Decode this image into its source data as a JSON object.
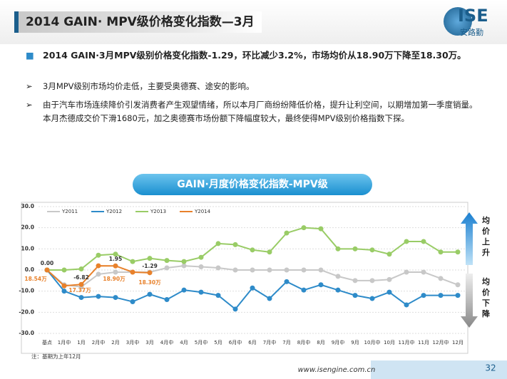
{
  "header": {
    "title": "2014 GAIN· MPV级价格变化指数—3月",
    "logo": "ISE",
    "logo_sub": "安路勤"
  },
  "bullets": [
    "2014 GAIN·3月MPV级别价格变化指数-1.29，环比减少3.2%，市场均价从18.90万下降至18.30万。",
    "3月MPV级别市场均价走低，主要受奥德赛、途安的影响。",
    "由于汽车市场连续降价引发消费者产生观望情绪，所以本月厂商纷纷降低价格，提升让利空间，以期增加第一季度销量。本月杰德成交价下滑1680元，加之奥德赛市场份额下降幅度较大，最终使得MPV级别价格指数下探。"
  ],
  "chart_data": {
    "type": "line",
    "title": "GAIN·月度价格变化指数-MPV级",
    "categories": [
      "基点",
      "1月中",
      "1月",
      "2月中",
      "2月",
      "3月中",
      "3月",
      "4月中",
      "4月",
      "5月中",
      "5月",
      "6月中",
      "6月",
      "7月中",
      "7月",
      "8月中",
      "8月",
      "9月中",
      "9月",
      "10月中",
      "10月",
      "11月中",
      "11月",
      "12月中",
      "12月"
    ],
    "series": [
      {
        "name": "Y2011",
        "color": "#c8c8c8",
        "values": [
          0,
          -7,
          -8,
          -2,
          -1,
          -1,
          -1,
          1,
          2,
          1.5,
          1,
          0,
          0,
          0,
          0,
          0,
          0,
          -3,
          -5,
          -5,
          -4.5,
          -1,
          -1,
          -4,
          -7
        ]
      },
      {
        "name": "Y2012",
        "color": "#2e8bc9",
        "values": [
          0,
          -10,
          -13,
          -12.5,
          -13,
          -15,
          -11.5,
          -14,
          -9.5,
          -10.5,
          -12,
          -18.5,
          -8.5,
          -13.5,
          -5.5,
          -9.5,
          -7,
          -9.5,
          -12,
          -13.5,
          -10.5,
          -16.5,
          -12,
          -12,
          -12
        ]
      },
      {
        "name": "Y2013",
        "color": "#99cc66",
        "values": [
          0,
          0,
          0.5,
          7,
          7.5,
          4,
          5.5,
          4.5,
          4,
          6,
          12.5,
          12,
          9.5,
          8.5,
          17.5,
          20,
          19.5,
          10,
          10,
          9.5,
          7.5,
          13.5,
          13.5,
          8.5,
          8.5
        ]
      },
      {
        "name": "Y2014",
        "color": "#e8812b",
        "values": [
          0,
          -7.5,
          -6.82,
          2,
          1.95,
          -1,
          -1.29,
          null,
          null,
          null,
          null,
          null,
          null,
          null,
          null,
          null,
          null,
          null,
          null,
          null,
          null,
          null,
          null,
          null,
          null
        ],
        "value_labels": [
          "0.00",
          null,
          "-6.82",
          null,
          "1.95",
          null,
          "-1.29",
          null,
          null,
          null,
          null,
          null,
          null,
          null,
          null,
          null,
          null,
          null,
          null,
          null,
          null,
          null,
          null,
          null,
          null
        ]
      }
    ],
    "ylim": [
      -30,
      30
    ],
    "yticks": [
      {
        "value": -30,
        "label": "-30.0"
      },
      {
        "value": -20,
        "label": "-20.0"
      },
      {
        "value": -10,
        "label": "-10.0"
      },
      {
        "value": 0,
        "label": "0.0"
      },
      {
        "value": 10,
        "label": "10.0"
      },
      {
        "value": 20,
        "label": "20.0"
      },
      {
        "value": 30,
        "label": "30.0"
      }
    ],
    "grid": true,
    "annotations": [
      "18.54万",
      "17.37万",
      "18.90万",
      "18.30万"
    ],
    "up_label": "均价上升",
    "down_label": "均价下降",
    "note": "注：基期为上年12月"
  },
  "footer": {
    "url": "www.isengine.com.cn",
    "page": "32"
  }
}
